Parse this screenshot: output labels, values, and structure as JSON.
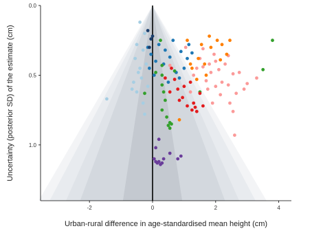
{
  "chart_data": {
    "type": "scatter",
    "title": "",
    "xlabel": "Urban-rural difference in age-standardised mean height (cm)",
    "ylabel": "Uncertainty (posterior SD) of the estimate (cm)",
    "xlim": [
      -3.55,
      4.4
    ],
    "ylim": [
      0,
      1.4
    ],
    "y_reversed": true,
    "x_ticks": [
      -2,
      0,
      2,
      4
    ],
    "x_tick_labels": [
      "-2",
      "0",
      "2",
      "4"
    ],
    "y_ticks": [
      0.0,
      0.5,
      1.0
    ],
    "y_tick_labels": [
      "0.0",
      "0.5",
      "1.0"
    ],
    "grid": false,
    "funnel_bands": [
      {
        "z": 2.58,
        "color": "#f3f4f6"
      },
      {
        "z": 2.33,
        "color": "#e8ebef"
      },
      {
        "z": 1.96,
        "color": "#dfe3e8"
      },
      {
        "z": 1.64,
        "color": "#d3d8de"
      },
      {
        "z": 0.67,
        "color": "#c4c9d0"
      }
    ],
    "reference_line_x": 0,
    "series": [
      {
        "color": "#a6cee3",
        "points": [
          [
            -0.4,
            0.12
          ],
          [
            -0.25,
            0.2
          ],
          [
            -0.5,
            0.28
          ],
          [
            -0.3,
            0.32
          ],
          [
            -0.55,
            0.38
          ],
          [
            -0.2,
            0.42
          ],
          [
            -0.45,
            0.48
          ],
          [
            -0.35,
            0.52
          ],
          [
            -0.6,
            0.55
          ],
          [
            -0.15,
            0.58
          ],
          [
            -0.5,
            0.62
          ],
          [
            -1.45,
            0.67
          ],
          [
            -0.3,
            0.7
          ],
          [
            -0.65,
            0.6
          ],
          [
            -0.25,
            0.78
          ],
          [
            -0.4,
            0.45
          ]
        ]
      },
      {
        "color": "#1f78b4",
        "points": [
          [
            -0.15,
            0.3
          ],
          [
            -0.05,
            0.35
          ],
          [
            0.1,
            0.4
          ],
          [
            -0.1,
            0.45
          ],
          [
            0.4,
            0.32
          ],
          [
            0.65,
            0.25
          ],
          [
            0.9,
            0.33
          ],
          [
            1.15,
            0.28
          ],
          [
            1.1,
            0.38
          ],
          [
            0.35,
            0.42
          ],
          [
            0.75,
            0.48
          ],
          [
            0.55,
            0.37
          ],
          [
            1.0,
            0.45
          ],
          [
            0.2,
            0.28
          ],
          [
            0.85,
            0.52
          ],
          [
            0.05,
            0.5
          ],
          [
            0.5,
            0.55
          ],
          [
            1.25,
            0.34
          ]
        ]
      },
      {
        "color": "#33a02c",
        "points": [
          [
            0.25,
            0.25
          ],
          [
            0.3,
            0.43
          ],
          [
            0.1,
            0.48
          ],
          [
            0.3,
            0.5
          ],
          [
            0.3,
            0.57
          ],
          [
            -0.25,
            0.63
          ],
          [
            0.35,
            0.62
          ],
          [
            0.4,
            0.68
          ],
          [
            0.3,
            0.75
          ],
          [
            0.45,
            0.8
          ],
          [
            0.55,
            0.84
          ],
          [
            0.5,
            0.86
          ],
          [
            0.6,
            0.85
          ],
          [
            0.55,
            0.88
          ],
          [
            3.8,
            0.25
          ],
          [
            3.5,
            0.46
          ],
          [
            1.5,
            0.62
          ],
          [
            0.7,
            0.47
          ]
        ]
      },
      {
        "color": "#e31a1c",
        "points": [
          [
            1.0,
            0.58
          ],
          [
            0.55,
            0.62
          ],
          [
            0.8,
            0.6
          ],
          [
            1.3,
            0.7
          ],
          [
            1.35,
            0.73
          ],
          [
            1.25,
            0.75
          ],
          [
            1.4,
            0.76
          ],
          [
            1.1,
            0.72
          ],
          [
            0.95,
            0.66
          ],
          [
            0.7,
            0.53
          ],
          [
            1.5,
            0.63
          ],
          [
            0.6,
            0.45
          ],
          [
            1.2,
            0.55
          ],
          [
            0.85,
            0.68
          ],
          [
            1.6,
            0.72
          ],
          [
            0.4,
            0.52
          ]
        ]
      },
      {
        "color": "#fb9a99",
        "points": [
          [
            1.3,
            0.5
          ],
          [
            1.6,
            0.44
          ],
          [
            1.8,
            0.42
          ],
          [
            2.1,
            0.46
          ],
          [
            2.2,
            0.55
          ],
          [
            2.55,
            0.49
          ],
          [
            2.75,
            0.48
          ],
          [
            3.0,
            0.56
          ],
          [
            2.65,
            0.63
          ],
          [
            2.45,
            0.7
          ],
          [
            2.55,
            0.76
          ],
          [
            1.7,
            0.54
          ],
          [
            2.9,
            0.6
          ],
          [
            3.3,
            0.52
          ],
          [
            1.95,
            0.35
          ],
          [
            2.4,
            0.36
          ],
          [
            1.5,
            0.38
          ],
          [
            2.15,
            0.64
          ],
          [
            1.2,
            0.62
          ],
          [
            1.9,
            0.7
          ],
          [
            2.6,
            0.93
          ],
          [
            2.0,
            0.4
          ],
          [
            1.05,
            0.3
          ],
          [
            2.3,
            0.42
          ],
          [
            1.75,
            0.6
          ],
          [
            1.4,
            0.45
          ],
          [
            2.0,
            0.58
          ],
          [
            0.55,
            0.43
          ],
          [
            1.6,
            0.31
          ],
          [
            2.4,
            0.57
          ],
          [
            1.85,
            0.48
          ]
        ]
      },
      {
        "color": "#ff7f00",
        "points": [
          [
            1.55,
            0.28
          ],
          [
            2.35,
            0.35
          ],
          [
            1.8,
            0.22
          ],
          [
            1.1,
            0.25
          ],
          [
            1.45,
            0.38
          ],
          [
            1.65,
            0.42
          ],
          [
            1.25,
            0.45
          ],
          [
            1.7,
            0.5
          ],
          [
            2.05,
            0.25
          ],
          [
            1.2,
            0.42
          ],
          [
            1.85,
            0.3
          ],
          [
            2.2,
            0.28
          ],
          [
            2.45,
            0.25
          ],
          [
            0.85,
            0.82
          ],
          [
            1.4,
            0.53
          ],
          [
            2.15,
            0.39
          ]
        ]
      },
      {
        "color": "#6a3d9a",
        "points": [
          [
            0.2,
            0.96
          ],
          [
            0.1,
            1.02
          ],
          [
            0.05,
            1.1
          ],
          [
            0.1,
            1.12
          ],
          [
            0.15,
            1.13
          ],
          [
            0.2,
            1.12
          ],
          [
            0.25,
            1.14
          ],
          [
            0.3,
            1.13
          ],
          [
            0.35,
            1.1
          ],
          [
            0.8,
            1.1
          ],
          [
            0.9,
            1.08
          ],
          [
            0.55,
            1.06
          ]
        ]
      },
      {
        "color": "#1a3d6b",
        "points": [
          [
            -0.15,
            0.18
          ],
          [
            -0.05,
            0.24
          ],
          [
            0.0,
            0.22
          ],
          [
            -0.1,
            0.3
          ]
        ]
      }
    ]
  }
}
